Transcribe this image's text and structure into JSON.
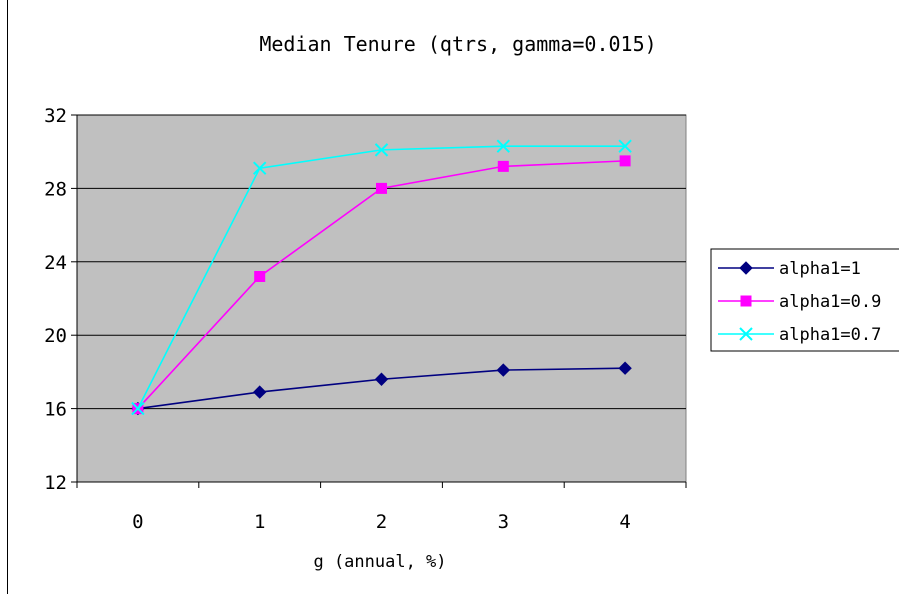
{
  "chart_data": {
    "type": "line",
    "title": "Median Tenure (qtrs, gamma=0.015)",
    "xlabel": "g (annual, %)",
    "ylabel": "",
    "categories": [
      "0",
      "1",
      "2",
      "3",
      "4"
    ],
    "ylim": [
      12,
      32
    ],
    "yticks": [
      "12",
      "16",
      "20",
      "24",
      "28",
      "32"
    ],
    "grid": true,
    "legend_position": "right",
    "plot_background": "#c0c0c0",
    "series": [
      {
        "name": "alpha1=1",
        "values": [
          16.0,
          16.9,
          17.6,
          18.1,
          18.2
        ],
        "color": "#000080",
        "marker": "diamond"
      },
      {
        "name": "alpha1=0.9",
        "values": [
          16.0,
          23.2,
          28.0,
          29.2,
          29.5
        ],
        "color": "#ff00ff",
        "marker": "square"
      },
      {
        "name": "alpha1=0.7",
        "values": [
          16.0,
          29.1,
          30.1,
          30.3,
          30.3
        ],
        "color": "#00ffff",
        "marker": "x"
      }
    ]
  }
}
